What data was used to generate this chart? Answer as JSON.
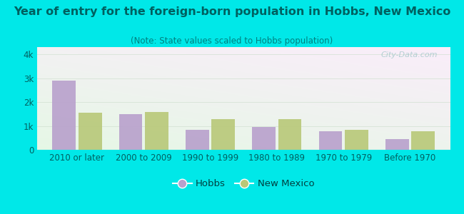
{
  "title": "Year of entry for the foreign-born population in Hobbs, New Mexico",
  "subtitle": "(Note: State values scaled to Hobbs population)",
  "categories": [
    "2010 or later",
    "2000 to 2009",
    "1990 to 1999",
    "1980 to 1989",
    "1970 to 1979",
    "Before 1970"
  ],
  "hobbs_values": [
    2900,
    1480,
    840,
    960,
    790,
    440
  ],
  "nm_values": [
    1540,
    1590,
    1290,
    1290,
    840,
    790
  ],
  "hobbs_color": "#b8a0cc",
  "nm_color": "#b8c878",
  "bg_outer": "#00e8e8",
  "yticks": [
    0,
    1000,
    2000,
    3000,
    4000
  ],
  "ytick_labels": [
    "0",
    "1k",
    "2k",
    "3k",
    "4k"
  ],
  "ylim": [
    0,
    4300
  ],
  "bar_width": 0.35,
  "title_fontsize": 11.5,
  "subtitle_fontsize": 8.5,
  "tick_fontsize": 8.5,
  "legend_fontsize": 9.5,
  "watermark_text": "City-Data.com",
  "title_color": "#006060",
  "subtitle_color": "#008080",
  "tick_color": "#006060",
  "legend_color": "#004040"
}
